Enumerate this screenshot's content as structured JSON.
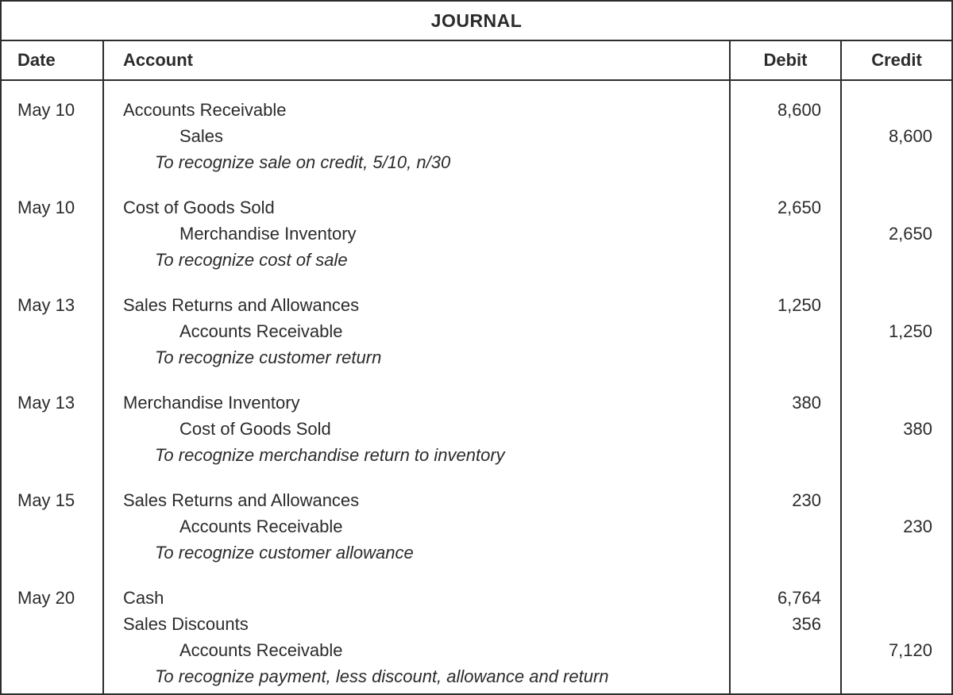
{
  "title": "JOURNAL",
  "columns": {
    "date": "Date",
    "account": "Account",
    "debit": "Debit",
    "credit": "Credit"
  },
  "colors": {
    "text": "#2b2b2b",
    "border": "#2d2d2e",
    "background": "#ffffff"
  },
  "entries": [
    {
      "date": "May 10",
      "lines": [
        {
          "account": "Accounts Receivable",
          "debit": "8,600",
          "credit": ""
        },
        {
          "account": "Sales",
          "debit": "",
          "credit": "8,600"
        },
        {
          "account": "To recognize sale on credit, 5/10, n/30",
          "debit": "",
          "credit": ""
        }
      ]
    },
    {
      "date": "May 10",
      "lines": [
        {
          "account": "Cost of Goods Sold",
          "debit": "2,650",
          "credit": ""
        },
        {
          "account": "Merchandise Inventory",
          "debit": "",
          "credit": "2,650"
        },
        {
          "account": "To recognize cost of sale",
          "debit": "",
          "credit": ""
        }
      ]
    },
    {
      "date": "May 13",
      "lines": [
        {
          "account": "Sales Returns and Allowances",
          "debit": "1,250",
          "credit": ""
        },
        {
          "account": "Accounts Receivable",
          "debit": "",
          "credit": "1,250"
        },
        {
          "account": "To recognize customer return",
          "debit": "",
          "credit": ""
        }
      ]
    },
    {
      "date": "May 13",
      "lines": [
        {
          "account": "Merchandise Inventory",
          "debit": "380",
          "credit": ""
        },
        {
          "account": "Cost of Goods Sold",
          "debit": "",
          "credit": "380"
        },
        {
          "account": "To recognize merchandise return to inventory",
          "debit": "",
          "credit": ""
        }
      ]
    },
    {
      "date": "May 15",
      "lines": [
        {
          "account": "Sales Returns and Allowances",
          "debit": "230",
          "credit": ""
        },
        {
          "account": "Accounts Receivable",
          "debit": "",
          "credit": "230"
        },
        {
          "account": "To recognize customer allowance",
          "debit": "",
          "credit": ""
        }
      ]
    },
    {
      "date": "May 20",
      "lines": [
        {
          "account": "Cash",
          "debit": "6,764",
          "credit": ""
        },
        {
          "account": "Sales Discounts",
          "debit": "356",
          "credit": ""
        },
        {
          "account": "Accounts Receivable",
          "debit": "",
          "credit": "7,120"
        },
        {
          "account": "To recognize payment, less discount, allowance and return",
          "debit": "",
          "credit": ""
        }
      ]
    }
  ]
}
